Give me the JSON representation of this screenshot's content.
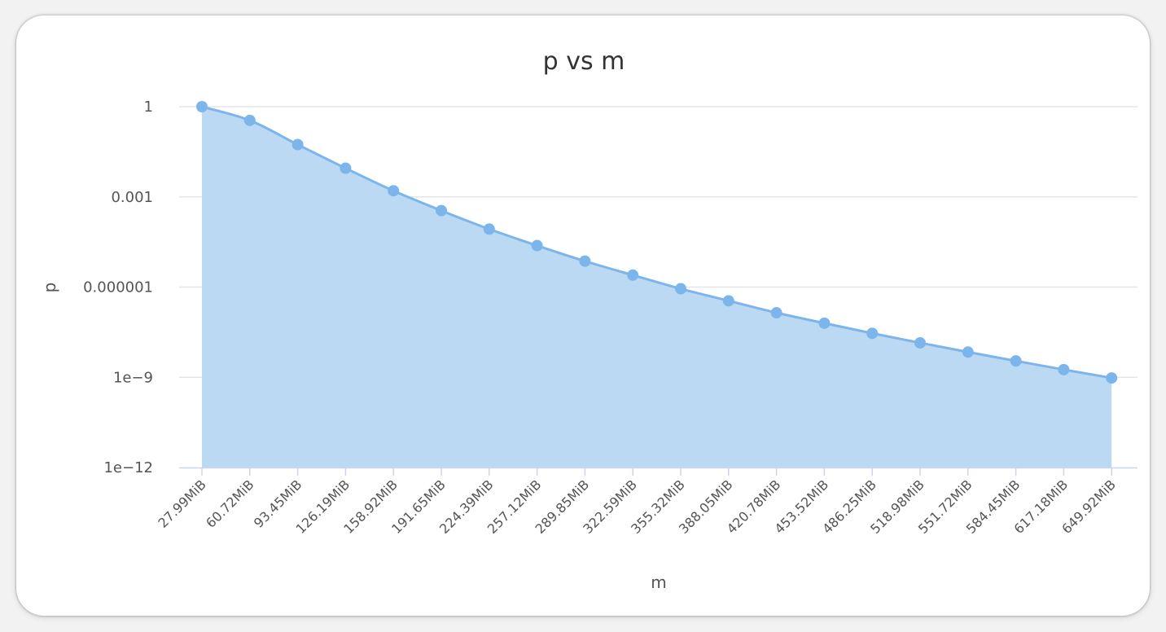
{
  "chart_data": {
    "type": "area",
    "title": "p vs m",
    "xlabel": "m",
    "ylabel": "p",
    "yscale": "log",
    "ylim": [
      1e-12,
      1
    ],
    "yticks": [
      {
        "value": 1,
        "label": "1"
      },
      {
        "value": 0.001,
        "label": "0.001"
      },
      {
        "value": 1e-06,
        "label": "0.000001"
      },
      {
        "value": 1e-09,
        "label": "1e−9"
      },
      {
        "value": 1e-12,
        "label": "1e−12"
      }
    ],
    "grid": true,
    "legend": "none",
    "categories": [
      "27.99MiB",
      "60.72MiB",
      "93.45MiB",
      "126.19MiB",
      "158.92MiB",
      "191.65MiB",
      "224.39MiB",
      "257.12MiB",
      "289.85MiB",
      "322.59MiB",
      "355.32MiB",
      "388.05MiB",
      "420.78MiB",
      "453.52MiB",
      "486.25MiB",
      "518.98MiB",
      "551.72MiB",
      "584.45MiB",
      "617.18MiB",
      "649.92MiB"
    ],
    "values": [
      1,
      0.35,
      0.055,
      0.009,
      0.0016,
      0.00035,
      8.5e-05,
      2.4e-05,
      7.3e-06,
      2.5e-06,
      8.8e-07,
      3.5e-07,
      1.4e-07,
      6.3e-08,
      2.9e-08,
      1.4e-08,
      6.9e-09,
      3.5e-09,
      1.8e-09,
      9.5e-10
    ],
    "colors": {
      "line": "#7cb5ec",
      "fill": "#bcd9f3",
      "grid": "#e6e6e6",
      "axis": "#ccd6eb"
    }
  }
}
